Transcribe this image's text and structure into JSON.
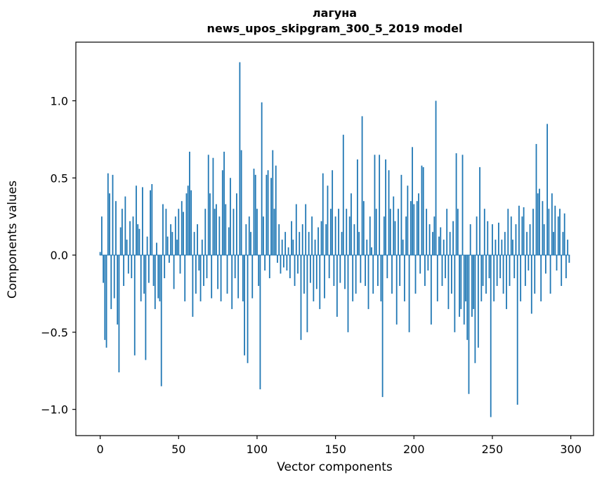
{
  "chart_data": {
    "type": "bar",
    "title_lines": [
      "лагуна",
      "news_upos_skipgram_300_5_2019 model"
    ],
    "title": "лагуна\nnews_upos_skipgram_300_5_2019 model",
    "xlabel": "Vector components",
    "ylabel": "Components values",
    "legend": "none",
    "grid": false,
    "bar_color": "#1f77b4",
    "spine_color": "#000000",
    "xlim": [
      -15.5,
      314.5
    ],
    "ylim": [
      -1.17,
      1.38
    ],
    "xticks": [
      0,
      50,
      100,
      150,
      200,
      250,
      300
    ],
    "ytick_values": [
      -1.0,
      -0.5,
      0.0,
      0.5,
      1.0
    ],
    "ytick_labels": [
      "−1.0",
      "−0.5",
      "0.0",
      "0.5",
      "1.0"
    ],
    "n_components": 300,
    "values": [
      0.02,
      0.25,
      -0.18,
      -0.55,
      -0.6,
      0.53,
      0.4,
      -0.35,
      0.52,
      -0.28,
      0.35,
      -0.45,
      -0.76,
      0.18,
      0.3,
      -0.2,
      0.38,
      0.1,
      -0.12,
      0.22,
      -0.15,
      0.25,
      -0.65,
      0.45,
      0.2,
      0.17,
      -0.3,
      0.44,
      -0.25,
      -0.68,
      0.12,
      -0.18,
      0.42,
      0.46,
      -0.2,
      -0.35,
      0.08,
      -0.28,
      -0.3,
      -0.85,
      0.33,
      -0.15,
      0.3,
      0.12,
      -0.05,
      0.2,
      0.15,
      -0.22,
      0.25,
      0.1,
      0.3,
      -0.12,
      0.35,
      0.28,
      -0.3,
      0.4,
      0.45,
      0.67,
      0.42,
      -0.4,
      0.15,
      -0.25,
      0.2,
      -0.1,
      -0.3,
      0.1,
      -0.2,
      0.3,
      -0.15,
      0.65,
      0.4,
      -0.28,
      0.63,
      0.3,
      0.33,
      -0.22,
      0.25,
      -0.3,
      0.55,
      0.67,
      0.33,
      -0.25,
      0.18,
      0.5,
      -0.35,
      0.3,
      -0.15,
      0.4,
      -0.28,
      1.25,
      0.68,
      -0.3,
      -0.65,
      0.2,
      -0.7,
      0.25,
      0.15,
      -0.28,
      0.56,
      0.52,
      0.3,
      -0.2,
      -0.87,
      0.99,
      0.25,
      -0.1,
      0.52,
      0.55,
      -0.15,
      0.5,
      0.68,
      0.3,
      0.58,
      -0.05,
      0.2,
      -0.12,
      0.1,
      -0.08,
      0.15,
      -0.1,
      0.05,
      -0.15,
      0.22,
      0.1,
      -0.2,
      0.33,
      -0.12,
      0.15,
      -0.55,
      0.2,
      -0.25,
      0.33,
      -0.5,
      0.15,
      -0.18,
      0.25,
      -0.3,
      0.1,
      -0.22,
      0.18,
      -0.35,
      0.22,
      0.53,
      -0.28,
      0.2,
      0.45,
      -0.15,
      0.3,
      0.55,
      -0.2,
      0.25,
      -0.4,
      0.3,
      -0.18,
      0.15,
      0.78,
      -0.22,
      0.3,
      -0.5,
      0.25,
      0.4,
      -0.3,
      0.2,
      -0.25,
      0.62,
      0.15,
      -0.18,
      0.9,
      0.35,
      -0.2,
      0.1,
      -0.35,
      0.25,
      0.05,
      -0.25,
      0.65,
      0.3,
      -0.2,
      0.65,
      -0.3,
      -0.92,
      0.25,
      0.62,
      -0.15,
      0.55,
      0.3,
      -0.25,
      0.38,
      0.22,
      -0.45,
      0.3,
      -0.2,
      0.52,
      0.1,
      -0.3,
      0.25,
      0.45,
      -0.5,
      0.35,
      0.7,
      0.33,
      -0.25,
      0.35,
      0.4,
      -0.12,
      0.58,
      0.57,
      -0.2,
      0.3,
      -0.1,
      0.2,
      -0.45,
      0.15,
      0.25,
      1.0,
      -0.3,
      0.12,
      0.18,
      -0.2,
      0.1,
      -0.15,
      0.3,
      -0.35,
      0.15,
      -0.25,
      0.22,
      -0.5,
      0.66,
      0.3,
      -0.4,
      -0.35,
      0.65,
      -0.45,
      -0.3,
      -0.55,
      -0.9,
      0.2,
      -0.4,
      -0.35,
      -0.7,
      0.25,
      -0.6,
      0.57,
      -0.3,
      -0.2,
      0.3,
      -0.25,
      0.22,
      -0.15,
      -1.05,
      0.2,
      -0.3,
      0.1,
      -0.2,
      0.21,
      -0.15,
      0.1,
      -0.25,
      0.15,
      -0.35,
      0.3,
      -0.2,
      0.25,
      0.1,
      -0.15,
      0.2,
      -0.97,
      0.32,
      -0.3,
      0.25,
      0.31,
      -0.2,
      0.15,
      -0.1,
      0.2,
      -0.38,
      0.3,
      -0.25,
      0.72,
      0.4,
      0.43,
      -0.3,
      0.35,
      0.2,
      -0.12,
      0.85,
      0.3,
      -0.25,
      0.4,
      0.15,
      0.32,
      -0.1,
      0.25,
      0.3,
      -0.2,
      0.15,
      0.27,
      -0.15,
      0.1,
      -0.05
    ]
  }
}
